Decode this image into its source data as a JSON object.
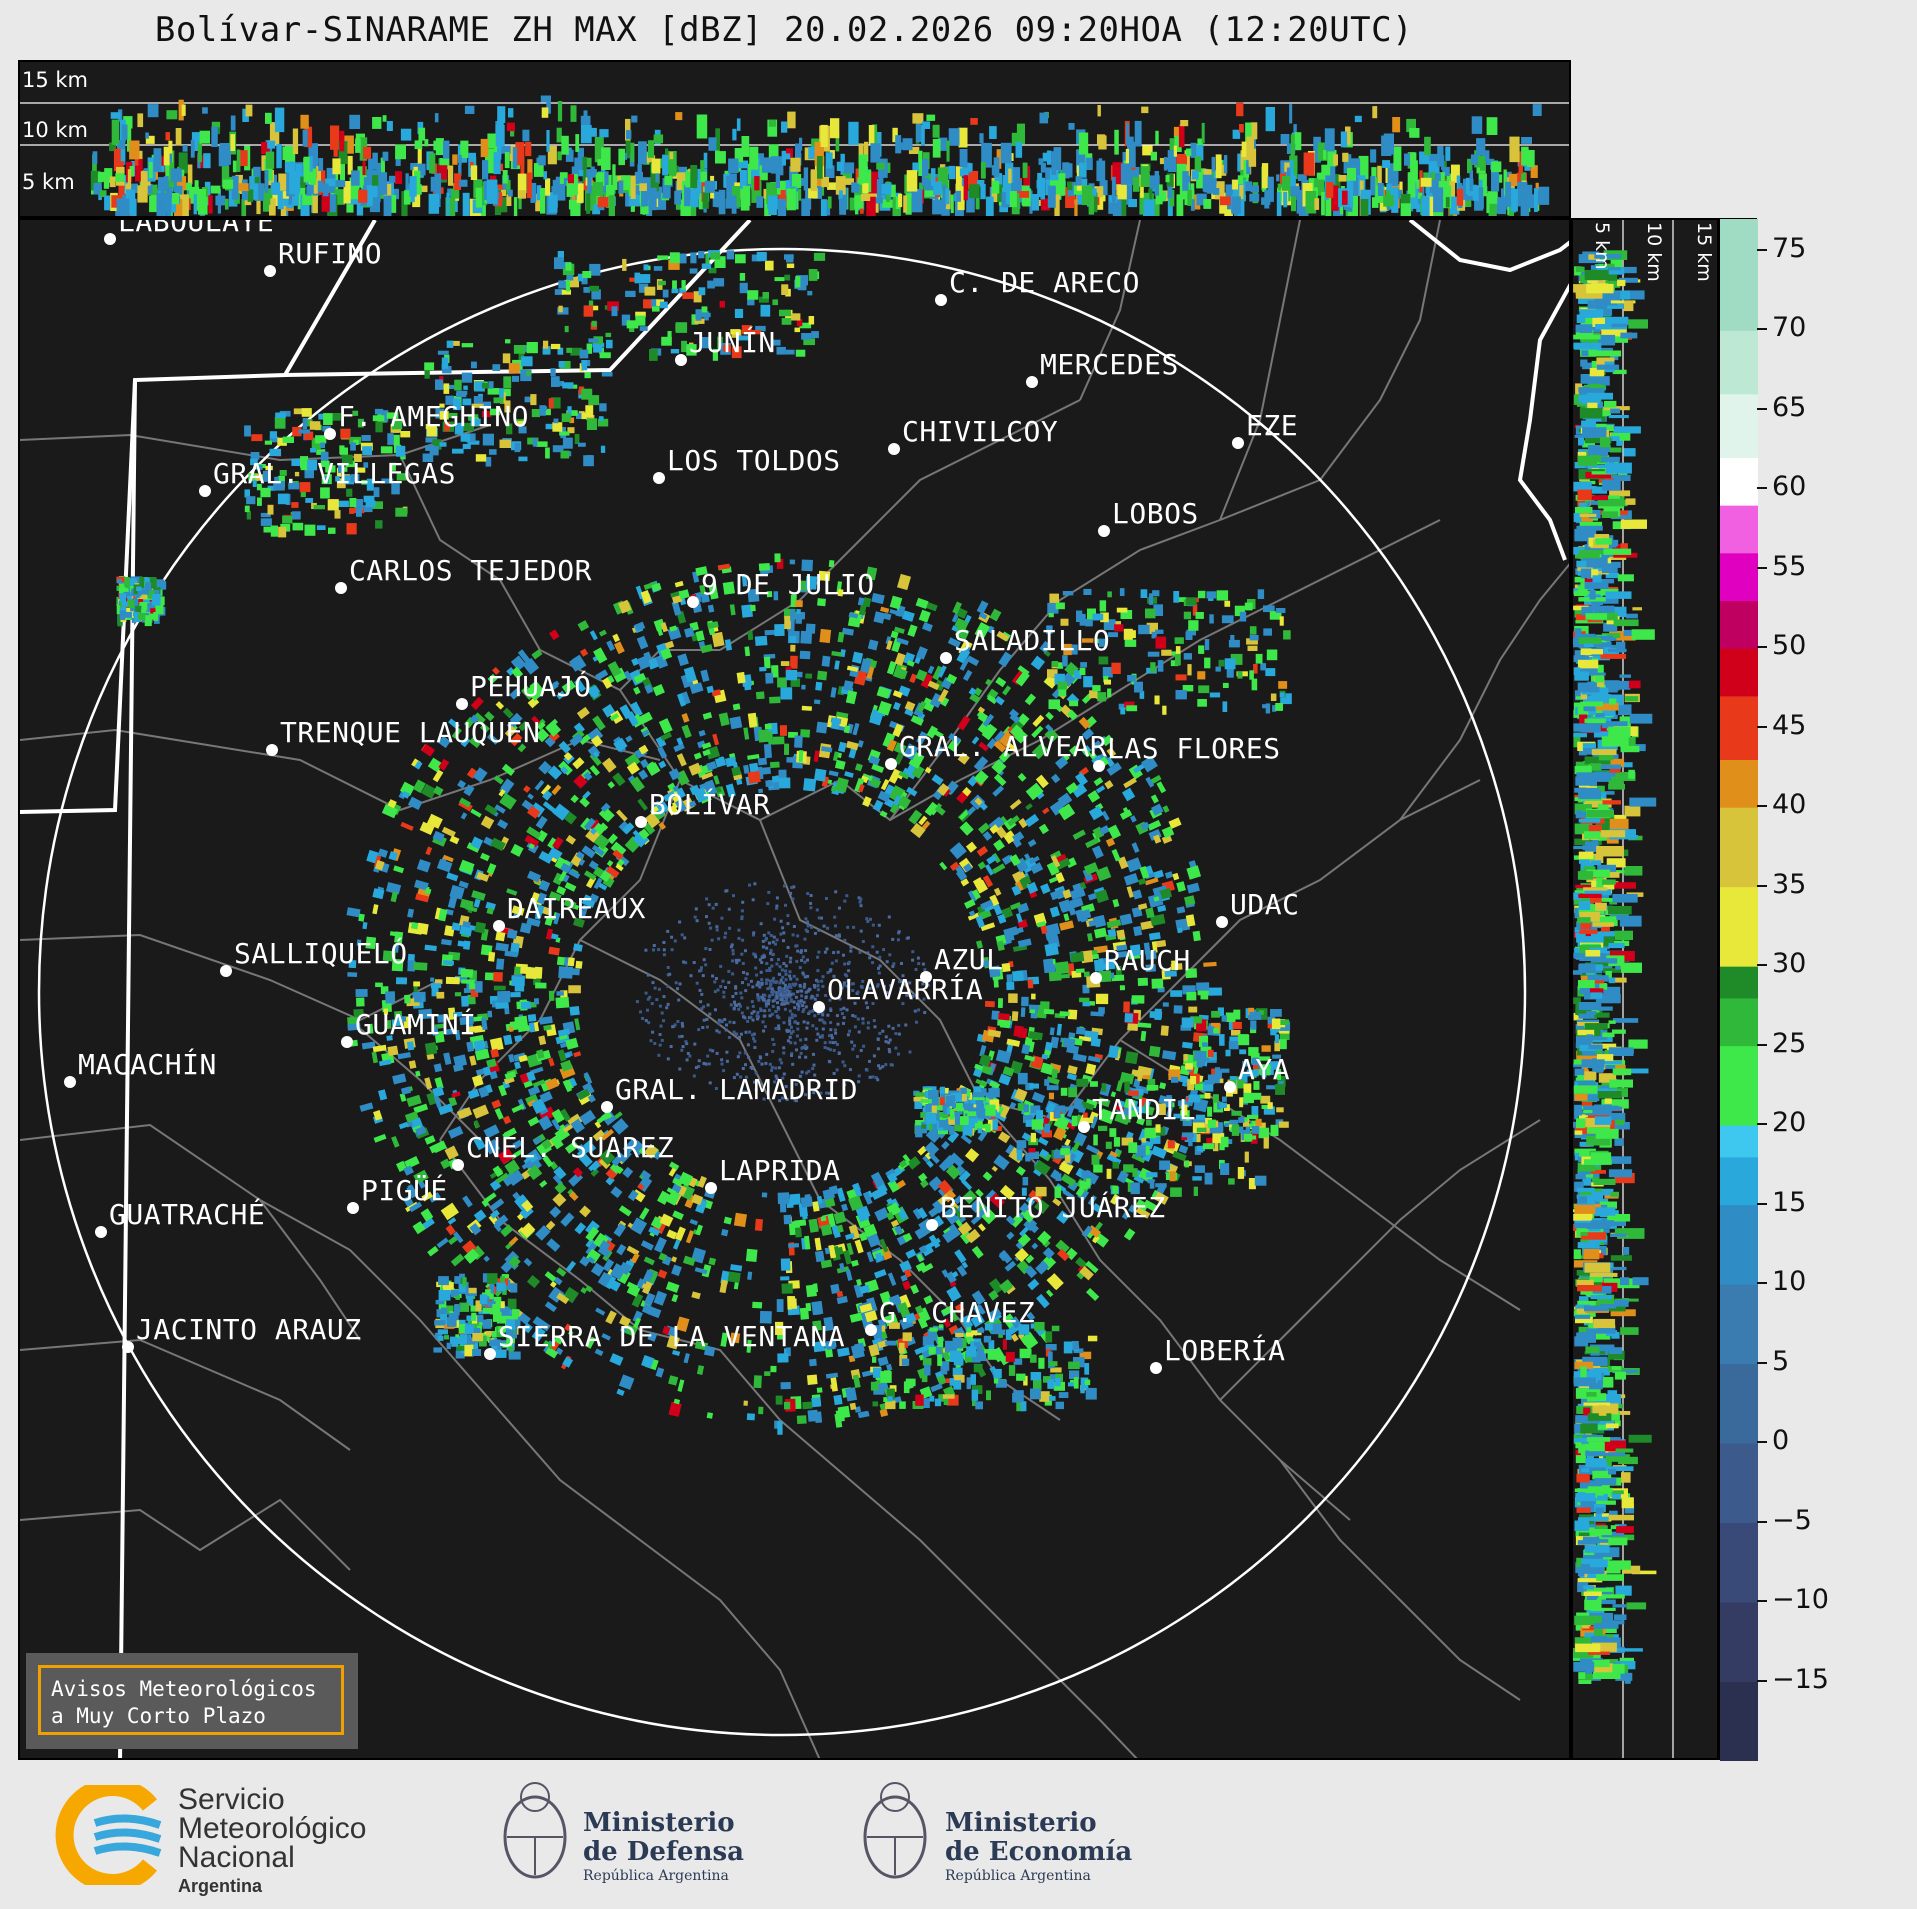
{
  "title": "Bolívar-SINARAME ZH MAX [dBZ] 20.02.2026 09:20HOA (12:20UTC)",
  "top_section": {
    "labels": [
      "15 km",
      "10 km",
      "5 km"
    ]
  },
  "side_section": {
    "labels": [
      "5 km",
      "10 km",
      "15 km"
    ]
  },
  "colorbar": {
    "ticks": [
      "75",
      "70",
      "65",
      "60",
      "55",
      "50",
      "45",
      "40",
      "35",
      "30",
      "25",
      "20",
      "15",
      "10",
      "5",
      "0",
      "−5",
      "−10",
      "−15"
    ],
    "values": [
      75,
      70,
      65,
      60,
      55,
      50,
      45,
      40,
      35,
      30,
      25,
      20,
      15,
      10,
      5,
      0,
      -5,
      -10,
      -15
    ],
    "range": [
      -20,
      77
    ]
  },
  "map": {
    "radar_site": "BOLÍVAR",
    "cities": [
      "LABOULAYE",
      "RUFINO",
      "C. DE ARECO",
      "JUNÍN",
      "MERCEDES",
      "F. AMEGHINO",
      "CHIVILCOY",
      "EZE",
      "GRAL. VILLEGAS",
      "LOS TOLDOS",
      "LOBOS",
      "CARLOS TEJEDOR",
      "9 DE JULIO",
      "SALADILLO",
      "PEHUAJÓ",
      "TRENQUE LAUQUEN",
      "GRAL. ALVEAR",
      "LAS FLORES",
      "BOLÍVAR",
      "DAIREAUX",
      "UDAC",
      "SALLIQUELÓ",
      "AZUL",
      "RAUCH",
      "OLAVARRÍA",
      "GUAMINÍ",
      "MACACHÍN",
      "AYA",
      "GRAL. LAMADRID",
      "TANDIL",
      "CNEL. SUAREZ",
      "LAPRIDA",
      "PIGÜÉ",
      "BENITO JUÁREZ",
      "GUATRACHÉ",
      "G. CHAVEZ",
      "JACINTO ARAUZ",
      "SIERRA DE LA VENTANA",
      "LOBERÍA"
    ]
  },
  "alert": {
    "line1": "Avisos Meteorológicos",
    "line2": "a Muy Corto Plazo"
  },
  "logos": {
    "smn": [
      "Servicio",
      "Meteorológico",
      "Nacional",
      "Argentina"
    ],
    "defensa": [
      "Ministerio",
      "de Defensa",
      "República Argentina"
    ],
    "economia": [
      "Ministerio",
      "de Economía",
      "República Argentina"
    ]
  }
}
